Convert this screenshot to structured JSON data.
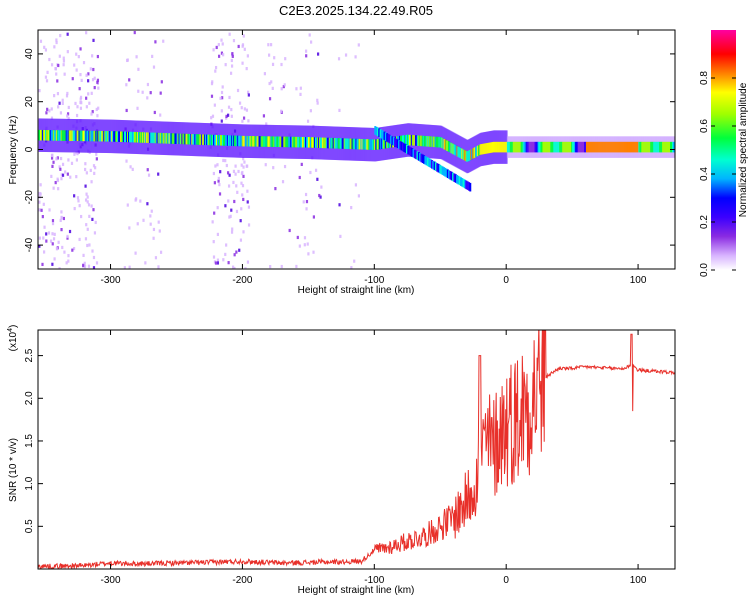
{
  "page": {
    "title": "C2E3.2025.134.22.49.R05"
  },
  "chart_data": [
    {
      "type": "heatmap",
      "title": "C2E3.2025.134.22.49.R05",
      "xlabel": "Height of straight line (km)",
      "ylabel": "Frequency (Hz)",
      "xlim": [
        -355,
        128
      ],
      "ylim": [
        -50,
        50
      ],
      "x_ticks": [
        -300,
        -200,
        -100,
        0,
        100
      ],
      "y_ticks": [
        -40,
        -20,
        0,
        20,
        40
      ],
      "grid": false,
      "colorbar": {
        "label": "Normalized spectral amplitude",
        "range": [
          0.0,
          1.0
        ],
        "ticks": [
          0.0,
          0.2,
          0.4,
          0.6,
          0.8
        ],
        "colormap": [
          "#ffffff",
          "#d8b4ff",
          "#8a2be2",
          "#3b00ff",
          "#0000ff",
          "#00b4ff",
          "#00ffd0",
          "#00ff3c",
          "#a0ff00",
          "#ffff00",
          "#ff8000",
          "#ff0000",
          "#ff00a0"
        ]
      },
      "ridge": {
        "description_points_x": [
          -355,
          -300,
          -250,
          -200,
          -150,
          -100,
          -75,
          -50,
          -30,
          -20,
          -10,
          0,
          50,
          100,
          128
        ],
        "description_points_y": [
          6,
          5.5,
          4.5,
          3.5,
          3,
          2,
          4,
          3,
          -3,
          0,
          1,
          1,
          1,
          1,
          1
        ]
      }
    },
    {
      "type": "line",
      "xlabel": "Height of straight line (km)",
      "ylabel": "SNR (10 * v/v)",
      "yexponent_label": "(x10",
      "yexponent_value": "4",
      "xlim": [
        -355,
        128
      ],
      "ylim": [
        0,
        2.8
      ],
      "x_ticks": [
        -300,
        -200,
        -100,
        0,
        100
      ],
      "y_ticks": [
        0.5,
        1.0,
        1.5,
        2.0,
        2.5
      ],
      "line_color": "#e8302a",
      "grid": false,
      "series": [
        {
          "x": [
            -355,
            -320,
            -300,
            -280,
            -250,
            -220,
            -200,
            -170,
            -140,
            -110,
            -100,
            -90,
            -80,
            -70,
            -60,
            -50,
            -40,
            -30,
            -25,
            -20,
            -15,
            -10,
            -5,
            0,
            10,
            20,
            30,
            40,
            50,
            60,
            70,
            80,
            90,
            95,
            100,
            110,
            120,
            128
          ],
          "values": [
            0.03,
            0.04,
            0.07,
            0.06,
            0.07,
            0.08,
            0.09,
            0.07,
            0.08,
            0.09,
            0.22,
            0.25,
            0.3,
            0.35,
            0.4,
            0.5,
            0.6,
            0.8,
            1.0,
            1.2,
            1.5,
            1.4,
            1.6,
            1.7,
            1.8,
            2.05,
            2.25,
            2.35,
            2.35,
            2.37,
            2.36,
            2.35,
            2.35,
            2.4,
            2.33,
            2.32,
            2.31,
            2.3
          ]
        }
      ]
    }
  ]
}
